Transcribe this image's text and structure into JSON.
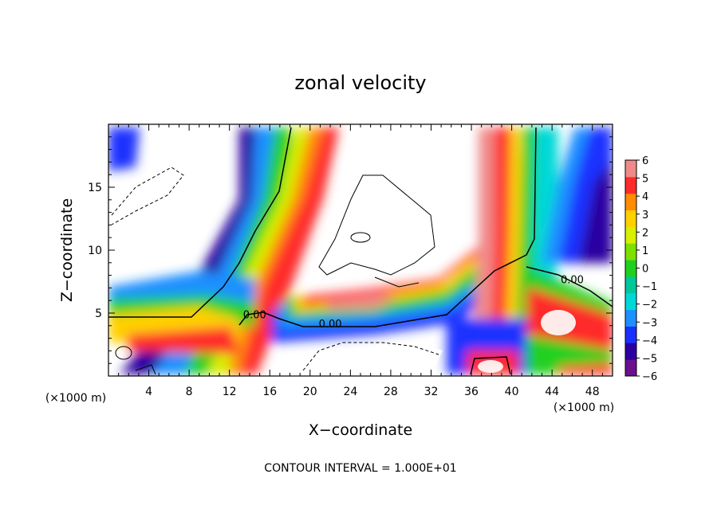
{
  "chart_data": {
    "type": "heatmap",
    "title": "zonal velocity",
    "xlabel": "X−coordinate",
    "ylabel": "Z−coordinate",
    "x_unit_left": "(×1000 m)",
    "x_unit_right": "(×1000 m)",
    "footer": "CONTOUR INTERVAL = 1.000E+01",
    "xlim": [
      0,
      50
    ],
    "ylim": [
      0,
      20
    ],
    "x_ticks": [
      4,
      8,
      12,
      16,
      20,
      24,
      28,
      32,
      36,
      40,
      44,
      48
    ],
    "y_ticks": [
      5,
      10,
      15
    ],
    "colorbar": {
      "levels": [
        -6,
        -5,
        -4,
        -3,
        -2,
        -1,
        0,
        1,
        2,
        3,
        4,
        5,
        6
      ],
      "tick_labels": [
        "6",
        "5",
        "4",
        "3",
        "2",
        "1",
        "0",
        "−1",
        "−2",
        "−3",
        "−4",
        "−5",
        "−6"
      ],
      "colors": [
        "#6a0f8e",
        "#2a00a0",
        "#1a30ff",
        "#1e90ff",
        "#00d8d8",
        "#00c89a",
        "#20d020",
        "#7ee000",
        "#d8ef00",
        "#ffd000",
        "#ff8c00",
        "#ff2a2a",
        "#f08a8a"
      ]
    },
    "contour_labels": [
      {
        "text": "0.00",
        "x": 14.5,
        "z": 4.7
      },
      {
        "text": "0.00",
        "x": 22,
        "z": 4.0
      },
      {
        "text": "0.00",
        "x": 46,
        "z": 7.5
      }
    ]
  }
}
